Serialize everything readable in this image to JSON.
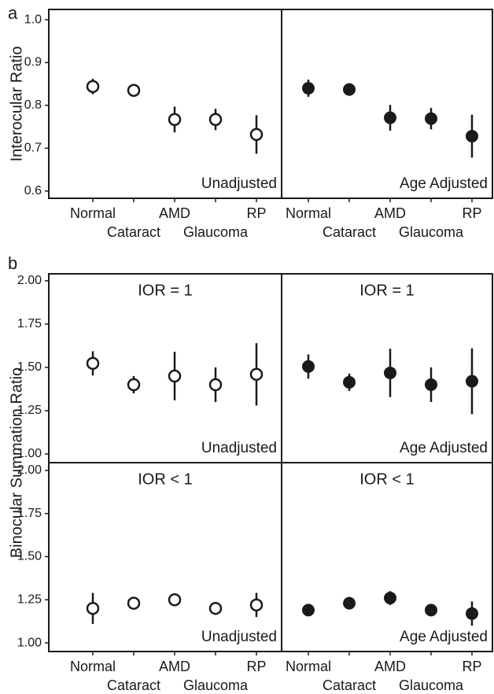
{
  "panels": [
    {
      "label": "a",
      "ylabel": "Interocular Ratio"
    },
    {
      "label": "b",
      "ylabel": "Binocular Summation Ratio"
    }
  ],
  "chart_data": [
    {
      "type": "errorbar",
      "marker": "open",
      "color": "#1a1a1a",
      "annotation": "Unadjusted",
      "categories": [
        "Normal",
        "Cataract",
        "AMD",
        "Glaucoma",
        "RP"
      ],
      "values": [
        0.844,
        0.835,
        0.767,
        0.767,
        0.732
      ],
      "errors": [
        0.018,
        0.008,
        0.03,
        0.025,
        0.045
      ],
      "ylim": [
        0.583,
        1.024
      ],
      "yticks": [
        0.6,
        0.7,
        0.8,
        0.9,
        {
          "value": 1,
          "label": "1.0"
        }
      ]
    },
    {
      "type": "errorbar",
      "marker": "filled",
      "color": "#1a1a1a",
      "annotation": "Age Adjusted",
      "categories": [
        "Normal",
        "Cataract",
        "AMD",
        "Glaucoma",
        "RP"
      ],
      "values": [
        0.84,
        0.837,
        0.771,
        0.769,
        0.728
      ],
      "errors": [
        0.02,
        0.006,
        0.03,
        0.025,
        0.05
      ],
      "ylim": [
        0.583,
        1.024
      ]
    },
    {
      "type": "errorbar",
      "marker": "open",
      "color": "#1a1a1a",
      "title": "IOR = 1",
      "annotation": "Unadjusted",
      "values": [
        1.523,
        1.4,
        1.45,
        1.4,
        1.46
      ],
      "errors": [
        0.07,
        0.05,
        0.14,
        0.1,
        0.18
      ],
      "ylim": [
        0.95,
        2.04
      ],
      "yticks": [
        {
          "value": 1,
          "label": "1.00"
        },
        {
          "value": 1.25,
          "label": "1.25"
        },
        {
          "value": 1.5,
          "label": "1.50"
        },
        {
          "value": 1.75,
          "label": "1.75"
        },
        {
          "value": 2,
          "label": "2.00"
        }
      ]
    },
    {
      "type": "errorbar",
      "marker": "filled",
      "color": "#1a1a1a",
      "title": "IOR = 1",
      "annotation": "Age Adjusted",
      "values": [
        1.505,
        1.414,
        1.468,
        1.4,
        1.42
      ],
      "errors": [
        0.07,
        0.05,
        0.14,
        0.1,
        0.19
      ],
      "ylim": [
        0.95,
        2.04
      ]
    },
    {
      "type": "errorbar",
      "marker": "open",
      "color": "#1a1a1a",
      "title": "IOR < 1",
      "annotation": "Unadjusted",
      "categories": [
        "Normal",
        "Cataract",
        "AMD",
        "Glaucoma",
        "RP"
      ],
      "values": [
        1.2,
        1.23,
        1.25,
        1.2,
        1.22
      ],
      "errors": [
        0.09,
        0.02,
        0.03,
        0.02,
        0.07
      ],
      "ylim": [
        0.95,
        2.045
      ],
      "yticks": [
        {
          "value": 1,
          "label": "1.00"
        },
        {
          "value": 1.25,
          "label": "1.25"
        },
        {
          "value": 1.5,
          "label": "1.50"
        },
        {
          "value": 1.75,
          "label": "1.75"
        },
        {
          "value": 2,
          "label": "2.00"
        }
      ]
    },
    {
      "type": "errorbar",
      "marker": "filled",
      "color": "#1a1a1a",
      "title": "IOR < 1",
      "annotation": "Age Adjusted",
      "categories": [
        "Normal",
        "Cataract",
        "AMD",
        "Glaucoma",
        "RP"
      ],
      "values": [
        1.19,
        1.23,
        1.26,
        1.19,
        1.17
      ],
      "errors": [
        0.01,
        0.01,
        0.04,
        0.02,
        0.07
      ],
      "ylim": [
        0.95,
        2.045
      ]
    }
  ]
}
